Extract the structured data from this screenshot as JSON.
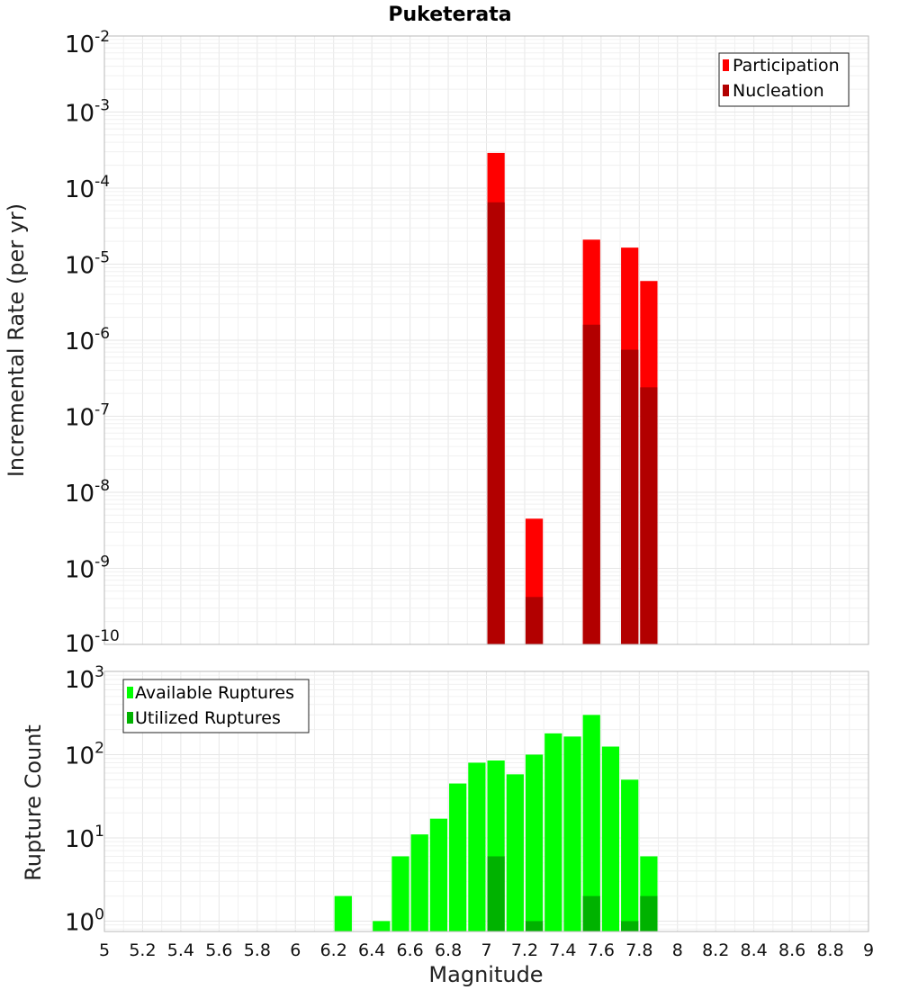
{
  "chart_data": [
    {
      "type": "bar",
      "title": "Puketerata",
      "xlabel": "",
      "ylabel": "Incremental Rate (per yr)",
      "xlim": [
        5,
        9
      ],
      "ylim": [
        1e-10,
        0.01
      ],
      "log_y": true,
      "y_tick_exponents": [
        -10,
        -9,
        -8,
        -7,
        -6,
        -5,
        -4,
        -3,
        -2
      ],
      "bar_width": 0.1,
      "legend_position": "top-right",
      "grid": true,
      "series": [
        {
          "name": "Participation",
          "color": "#ff0000",
          "points": [
            {
              "x": 7.05,
              "y": 0.00029
            },
            {
              "x": 7.25,
              "y": 4.5e-09
            },
            {
              "x": 7.55,
              "y": 2.1e-05
            },
            {
              "x": 7.75,
              "y": 1.65e-05
            },
            {
              "x": 7.85,
              "y": 6e-06
            }
          ]
        },
        {
          "name": "Nucleation",
          "color": "#b20000",
          "points": [
            {
              "x": 7.05,
              "y": 6.5e-05
            },
            {
              "x": 7.25,
              "y": 4.2e-10
            },
            {
              "x": 7.55,
              "y": 1.6e-06
            },
            {
              "x": 7.75,
              "y": 7.5e-07
            },
            {
              "x": 7.85,
              "y": 2.4e-07
            }
          ]
        }
      ]
    },
    {
      "type": "bar",
      "title": "",
      "xlabel": "Magnitude",
      "ylabel": "Rupture Count",
      "xlim": [
        5,
        9
      ],
      "ylim": [
        0.75,
        1000
      ],
      "log_y": true,
      "y_tick_exponents": [
        0,
        1,
        2,
        3
      ],
      "x_ticks": [
        "5",
        "5.2",
        "5.4",
        "5.6",
        "5.8",
        "6",
        "6.2",
        "6.4",
        "6.6",
        "6.8",
        "7",
        "7.2",
        "7.4",
        "7.6",
        "7.8",
        "8",
        "8.2",
        "8.4",
        "8.6",
        "8.8",
        "9"
      ],
      "bar_width": 0.1,
      "legend_position": "top-left",
      "grid": true,
      "series": [
        {
          "name": "Available Ruptures",
          "color": "#00ff00",
          "points": [
            {
              "x": 6.25,
              "y": 2
            },
            {
              "x": 6.45,
              "y": 1
            },
            {
              "x": 6.55,
              "y": 6
            },
            {
              "x": 6.65,
              "y": 11
            },
            {
              "x": 6.75,
              "y": 17
            },
            {
              "x": 6.85,
              "y": 45
            },
            {
              "x": 6.95,
              "y": 80
            },
            {
              "x": 7.05,
              "y": 85
            },
            {
              "x": 7.15,
              "y": 58
            },
            {
              "x": 7.25,
              "y": 100
            },
            {
              "x": 7.35,
              "y": 180
            },
            {
              "x": 7.45,
              "y": 165
            },
            {
              "x": 7.55,
              "y": 300
            },
            {
              "x": 7.65,
              "y": 125
            },
            {
              "x": 7.75,
              "y": 50
            },
            {
              "x": 7.85,
              "y": 6
            }
          ]
        },
        {
          "name": "Utilized Ruptures",
          "color": "#00b200",
          "points": [
            {
              "x": 7.05,
              "y": 6
            },
            {
              "x": 7.25,
              "y": 1
            },
            {
              "x": 7.55,
              "y": 2
            },
            {
              "x": 7.75,
              "y": 1
            },
            {
              "x": 7.85,
              "y": 2
            }
          ]
        }
      ]
    }
  ]
}
